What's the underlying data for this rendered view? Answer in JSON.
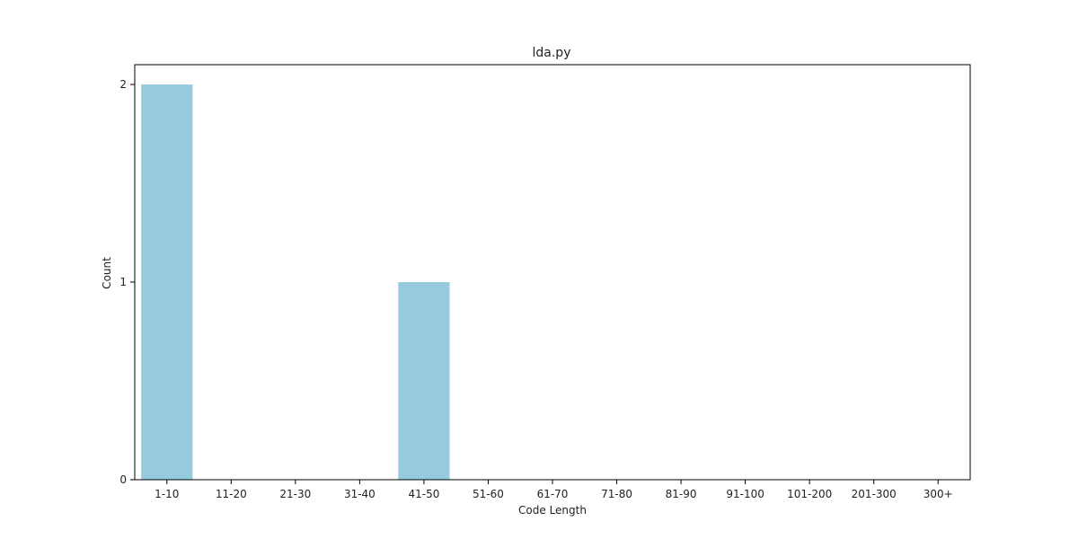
{
  "chart_data": {
    "type": "bar",
    "title": "lda.py",
    "xlabel": "Code Length",
    "ylabel": "Count",
    "categories": [
      "1-10",
      "11-20",
      "21-30",
      "31-40",
      "41-50",
      "51-60",
      "61-70",
      "71-80",
      "81-90",
      "91-100",
      "101-200",
      "201-300",
      "300+"
    ],
    "values": [
      2,
      0,
      0,
      0,
      1,
      0,
      0,
      0,
      0,
      0,
      0,
      0,
      0
    ],
    "ylim": [
      0,
      2.1
    ],
    "yticks": [
      0,
      1,
      2
    ],
    "grid": false,
    "legend": "none",
    "colors": {
      "bar": "#96cade",
      "axis": "#000000",
      "text": "#222222"
    }
  }
}
